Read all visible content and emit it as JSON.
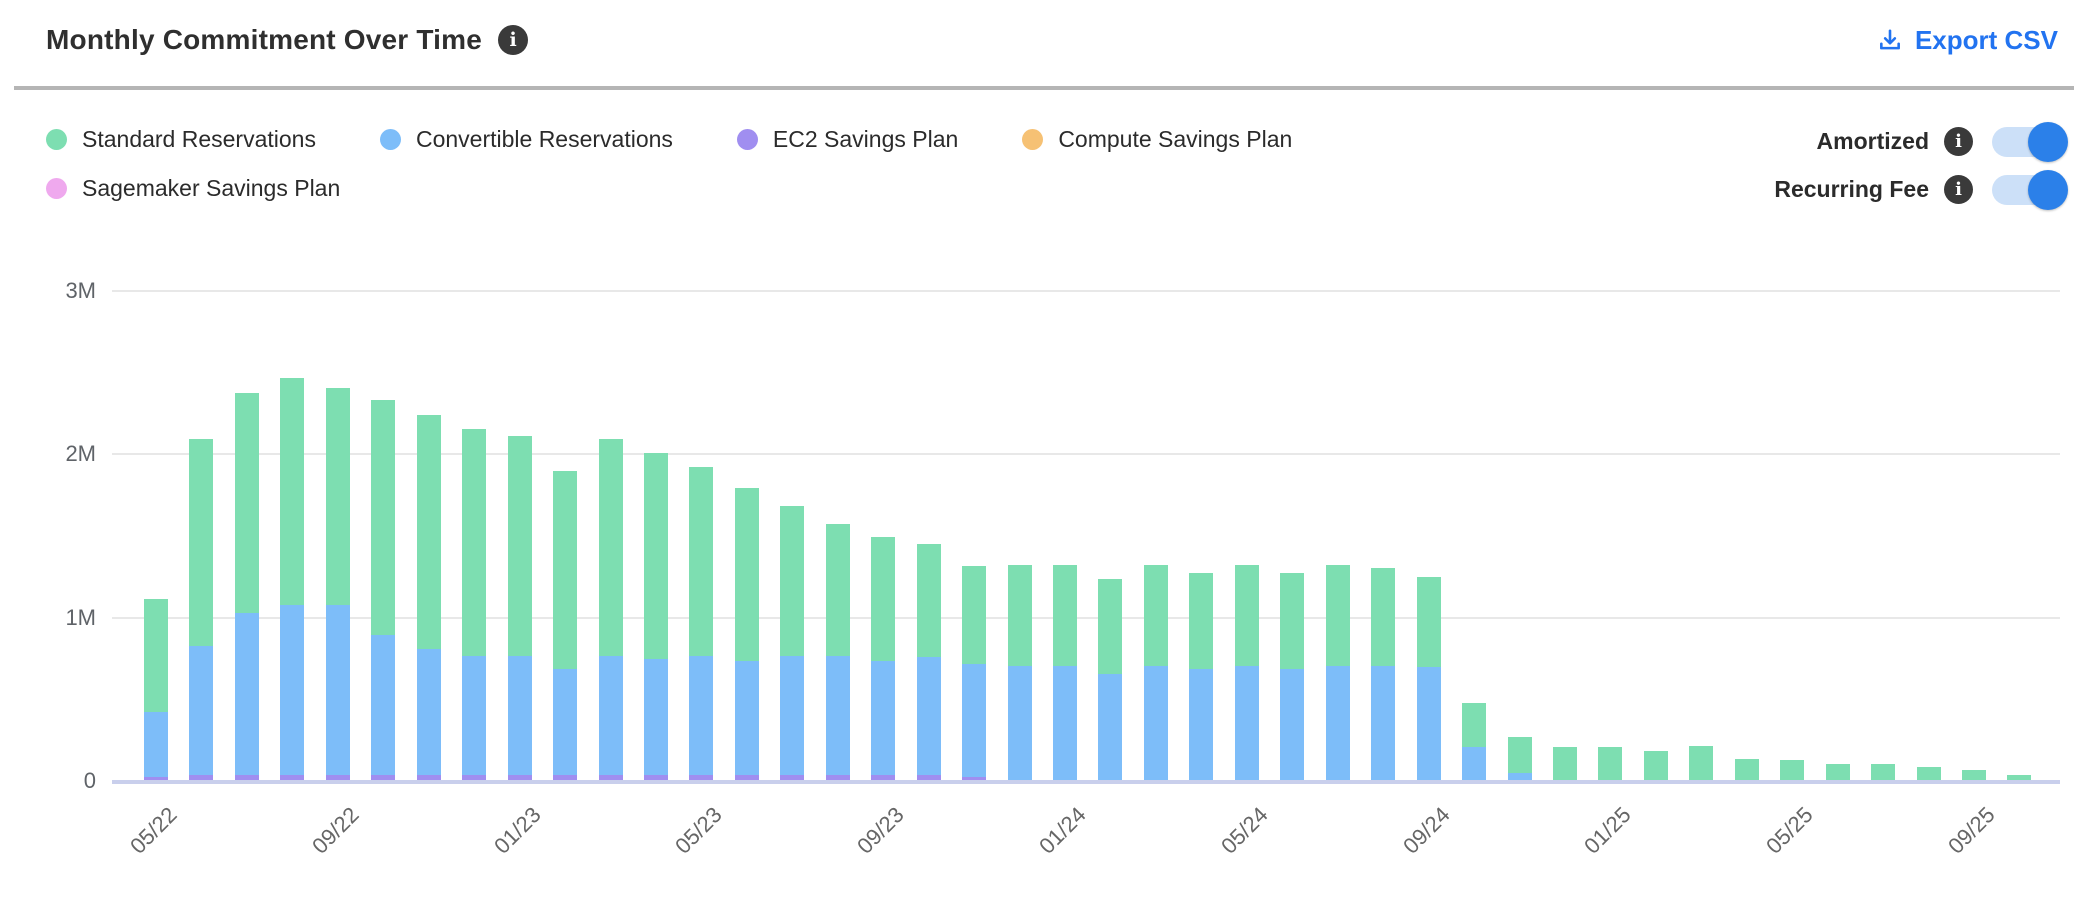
{
  "header": {
    "title": "Monthly Commitment Over Time",
    "export_label": "Export CSV"
  },
  "legend": {
    "items": [
      {
        "label": "Standard Reservations",
        "color": "#7ddeb1",
        "row": 1
      },
      {
        "label": "Convertible Reservations",
        "color": "#7dbdf9",
        "row": 1
      },
      {
        "label": "EC2 Savings Plan",
        "color": "#a08ef0",
        "row": 1
      },
      {
        "label": "Compute Savings Plan",
        "color": "#f6c174",
        "row": 1
      },
      {
        "label": "Sagemaker Savings Plan",
        "color": "#efa9ee",
        "row": 2
      }
    ]
  },
  "toggles": [
    {
      "label": "Amortized",
      "state": "on"
    },
    {
      "label": "Recurring Fee",
      "state": "on"
    }
  ],
  "colors": {
    "accent_blue": "#2273f0",
    "toggle_track": "#cce0f8",
    "toggle_knob": "#2b80e9",
    "info_icon_bg": "#3a3a3a",
    "grid": "#e8e8e8",
    "baseline": "#c9cfec",
    "axis_text": "#5f6368"
  },
  "chart_data": {
    "type": "bar",
    "stacked": true,
    "units": "USD, millions (M)",
    "ylim": [
      0,
      3000000
    ],
    "y_tick_labels": [
      "0",
      "1M",
      "2M",
      "3M"
    ],
    "x_tick_indices": [
      0,
      4,
      8,
      12,
      16,
      20,
      24,
      28,
      32,
      36,
      40
    ],
    "categories": [
      "05/22",
      "06/22",
      "07/22",
      "08/22",
      "09/22",
      "10/22",
      "11/22",
      "12/22",
      "01/23",
      "02/23",
      "03/23",
      "04/23",
      "05/23",
      "06/23",
      "07/23",
      "08/23",
      "09/23",
      "10/23",
      "11/23",
      "12/23",
      "01/24",
      "02/24",
      "03/24",
      "04/24",
      "05/24",
      "06/24",
      "07/24",
      "08/24",
      "09/24",
      "10/24",
      "11/24",
      "12/24",
      "01/25",
      "02/25",
      "03/25",
      "04/25",
      "05/25",
      "06/25",
      "07/25",
      "08/25",
      "09/25",
      "10/25"
    ],
    "series": [
      {
        "name": "Sagemaker Savings Plan",
        "color": "#efa9ee",
        "stack_order": 1,
        "values_m": [
          0,
          0,
          0,
          0,
          0,
          0,
          0,
          0,
          0,
          0,
          0,
          0,
          0,
          0,
          0,
          0,
          0,
          0,
          0,
          0,
          0,
          0,
          0,
          0,
          0,
          0,
          0,
          0,
          0,
          0,
          0,
          0,
          0,
          0,
          0,
          0,
          0,
          0,
          0,
          0,
          0,
          0
        ]
      },
      {
        "name": "EC2 Savings Plan",
        "color": "#a08ef0",
        "stack_order": 2,
        "values_m": [
          0.02,
          0.03,
          0.03,
          0.03,
          0.03,
          0.03,
          0.03,
          0.03,
          0.03,
          0.03,
          0.03,
          0.03,
          0.03,
          0.03,
          0.03,
          0.03,
          0.03,
          0.03,
          0.02,
          0,
          0,
          0,
          0,
          0,
          0,
          0,
          0,
          0,
          0,
          0,
          0,
          0,
          0,
          0,
          0,
          0,
          0,
          0,
          0,
          0,
          0,
          0
        ]
      },
      {
        "name": "Compute Savings Plan",
        "color": "#f6c174",
        "stack_order": 3,
        "values_m": [
          0,
          0,
          0,
          0,
          0,
          0,
          0,
          0,
          0,
          0,
          0,
          0,
          0,
          0,
          0,
          0,
          0,
          0,
          0,
          0,
          0,
          0,
          0,
          0,
          0,
          0,
          0,
          0,
          0,
          0,
          0,
          0,
          0,
          0,
          0,
          0,
          0,
          0,
          0,
          0,
          0,
          0
        ]
      },
      {
        "name": "Convertible Reservations",
        "color": "#7dbdf9",
        "stack_order": 4,
        "values_m": [
          0.4,
          0.79,
          0.99,
          1.04,
          1.04,
          0.86,
          0.77,
          0.73,
          0.73,
          0.65,
          0.73,
          0.71,
          0.73,
          0.7,
          0.73,
          0.73,
          0.7,
          0.72,
          0.69,
          0.7,
          0.7,
          0.65,
          0.7,
          0.68,
          0.7,
          0.68,
          0.7,
          0.7,
          0.69,
          0.2,
          0.04,
          0,
          0,
          0,
          0,
          0,
          0,
          0,
          0,
          0,
          0,
          0
        ]
      },
      {
        "name": "Standard Reservations",
        "color": "#7ddeb1",
        "stack_order": 5,
        "values_m": [
          0.69,
          1.27,
          1.35,
          1.39,
          1.33,
          1.44,
          1.43,
          1.39,
          1.35,
          1.21,
          1.33,
          1.26,
          1.16,
          1.06,
          0.92,
          0.81,
          0.76,
          0.69,
          0.6,
          0.62,
          0.62,
          0.58,
          0.62,
          0.59,
          0.62,
          0.59,
          0.62,
          0.6,
          0.55,
          0.27,
          0.22,
          0.2,
          0.2,
          0.18,
          0.21,
          0.13,
          0.12,
          0.1,
          0.1,
          0.08,
          0.06,
          0.03
        ]
      }
    ]
  }
}
